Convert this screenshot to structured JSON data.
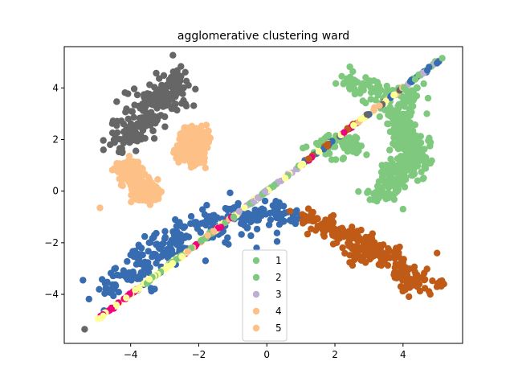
{
  "chart_data": {
    "type": "scatter",
    "title": "agglomerative clustering ward",
    "xlabel": "",
    "ylabel": "",
    "xlim": [
      -5.95,
      5.75
    ],
    "ylim": [
      -5.9,
      5.6
    ],
    "xticks": [
      -4,
      -2,
      0,
      2,
      4
    ],
    "yticks": [
      -4,
      -2,
      0,
      2,
      4
    ],
    "xtick_labels": [
      "−4",
      "−2",
      "0",
      "2",
      "4"
    ],
    "ytick_labels": [
      "−4",
      "−2",
      "0",
      "2",
      "4"
    ],
    "grid": false,
    "legend_position": "lower-center",
    "legend": [
      {
        "label": "1",
        "color": "#7fc97f"
      },
      {
        "label": "2",
        "color": "#7fc97f"
      },
      {
        "label": "3",
        "color": "#beaed4"
      },
      {
        "label": "4",
        "color": "#fdc086"
      },
      {
        "label": "5",
        "color": "#fdc086"
      }
    ],
    "colors": {
      "green": "#7fc97f",
      "purple": "#beaed4",
      "orange": "#fdc086",
      "yellow": "#ffff99",
      "blue": "#386cb0",
      "pink": "#f0027f",
      "brown": "#bf5b17",
      "gray": "#666666"
    },
    "series": [
      {
        "color": "#666666",
        "shape": "blob",
        "points": [
          [
            -3.9,
            2.2
          ],
          [
            -3.7,
            2.6
          ],
          [
            -3.5,
            3.0
          ],
          [
            -3.3,
            3.4
          ],
          [
            -3.1,
            3.8
          ],
          [
            -2.9,
            4.0
          ],
          [
            -2.7,
            4.2
          ],
          [
            -2.5,
            4.3
          ],
          [
            -3.6,
            3.4
          ],
          [
            -4.2,
            2.0
          ],
          [
            -4.3,
            2.5
          ],
          [
            -3.0,
            3.5
          ],
          [
            -2.8,
            3.6
          ],
          [
            -3.4,
            2.6
          ]
        ],
        "spread": 0.28,
        "count": 220,
        "extras": [
          [
            -4.8,
            1.6
          ],
          [
            -4.6,
            1.8
          ],
          [
            -2.3,
            4.1
          ],
          [
            -2.5,
            3.4
          ]
        ]
      },
      {
        "color": "#fdc086",
        "shape": "blob",
        "points": [
          [
            -2.15,
            2.3
          ],
          [
            -2.2,
            1.9
          ],
          [
            -2.25,
            1.5
          ],
          [
            -2.1,
            1.2
          ],
          [
            -2.3,
            2.0
          ],
          [
            -1.95,
            2.1
          ],
          [
            -2.4,
            1.6
          ],
          [
            -2.05,
            1.7
          ]
        ],
        "spread": 0.15,
        "count": 300,
        "extras": []
      },
      {
        "color": "#fdc086",
        "shape": "blob",
        "points": [
          [
            -4.0,
            1.0
          ],
          [
            -3.8,
            0.7
          ],
          [
            -3.6,
            0.2
          ],
          [
            -3.4,
            -0.1
          ],
          [
            -3.7,
            -0.2
          ],
          [
            -3.3,
            0.1
          ],
          [
            -4.2,
            0.8
          ],
          [
            -3.9,
            0.4
          ]
        ],
        "spread": 0.15,
        "count": 230,
        "extras": [
          [
            -4.9,
            -0.65
          ]
        ]
      },
      {
        "color": "#386cb0",
        "shape": "blob",
        "points": [
          [
            -4.6,
            -3.8
          ],
          [
            -4.2,
            -3.2
          ],
          [
            -3.8,
            -2.7
          ],
          [
            -3.4,
            -2.2
          ],
          [
            -3.0,
            -2.0
          ],
          [
            -2.6,
            -1.7
          ],
          [
            -2.2,
            -1.3
          ],
          [
            -1.8,
            -1.2
          ],
          [
            -1.3,
            -1.0
          ],
          [
            -0.8,
            -0.8
          ],
          [
            -0.3,
            -0.9
          ],
          [
            0.2,
            -0.8
          ],
          [
            0.6,
            -1.0
          ],
          [
            -3.2,
            -2.6
          ],
          [
            -3.6,
            -3.4
          ],
          [
            -2.8,
            -2.4
          ],
          [
            -1.5,
            -1.6
          ],
          [
            -0.5,
            -1.2
          ]
        ],
        "spread": 0.22,
        "count": 320,
        "extras": [
          [
            -5.4,
            -3.45
          ],
          [
            -0.3,
            -2.2
          ],
          [
            0.3,
            -1.95
          ],
          [
            -1.8,
            -2.7
          ]
        ]
      },
      {
        "color": "#bf5b17",
        "shape": "blob",
        "points": [
          [
            1.2,
            -1.1
          ],
          [
            1.6,
            -1.4
          ],
          [
            2.0,
            -1.6
          ],
          [
            2.4,
            -1.8
          ],
          [
            2.8,
            -2.1
          ],
          [
            3.1,
            -2.4
          ],
          [
            3.4,
            -2.6
          ],
          [
            3.8,
            -2.9
          ],
          [
            4.1,
            -3.1
          ],
          [
            4.4,
            -3.4
          ],
          [
            4.8,
            -3.6
          ],
          [
            1.9,
            -1.2
          ],
          [
            2.6,
            -2.5
          ],
          [
            3.6,
            -2.4
          ],
          [
            4.2,
            -3.6
          ]
        ],
        "spread": 0.2,
        "count": 260,
        "extras": [
          [
            5.2,
            -3.6
          ],
          [
            4.8,
            -4.0
          ],
          [
            5.0,
            -2.4
          ],
          [
            1.3,
            -0.9
          ]
        ]
      },
      {
        "color": "#7fc97f",
        "shape": "blob",
        "points": [
          [
            2.5,
            4.2
          ],
          [
            3.0,
            4.0
          ],
          [
            3.5,
            3.8
          ],
          [
            4.2,
            3.7
          ],
          [
            3.8,
            3.1
          ],
          [
            3.9,
            2.7
          ],
          [
            4.1,
            2.4
          ],
          [
            4.0,
            2.0
          ],
          [
            4.1,
            1.6
          ],
          [
            4.2,
            1.2
          ],
          [
            4.0,
            0.8
          ],
          [
            3.8,
            0.4
          ],
          [
            3.5,
            0.0
          ],
          [
            3.2,
            -0.1
          ],
          [
            1.9,
            1.9
          ],
          [
            1.6,
            1.6
          ],
          [
            2.4,
            1.7
          ],
          [
            4.4,
            2.0
          ],
          [
            4.5,
            1.3
          ],
          [
            3.7,
            0.9
          ]
        ],
        "spread": 0.22,
        "count": 480,
        "extras": [
          [
            4.0,
            -0.7
          ],
          [
            3.5,
            -0.3
          ],
          [
            2.6,
            2.1
          ],
          [
            4.7,
            3.0
          ]
        ]
      },
      {
        "color": "mix",
        "shape": "diagonal",
        "from": [
          -4.95,
          -4.95
        ],
        "to": [
          5.05,
          5.05
        ],
        "count": 300,
        "extras": []
      }
    ]
  }
}
